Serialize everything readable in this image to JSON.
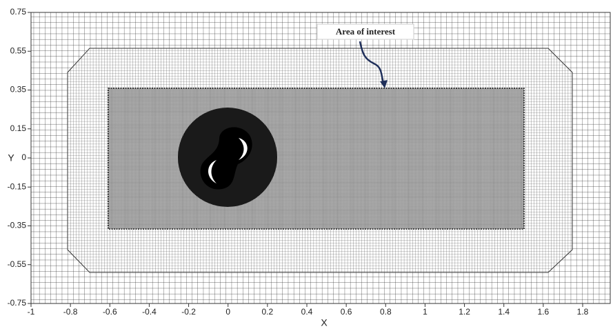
{
  "chart_data": {
    "type": "mesh",
    "x_label": "X",
    "y_label": "Y",
    "annotation": "Area of interest",
    "xlim": [
      -1,
      1.94
    ],
    "ylim": [
      -0.75,
      0.75
    ],
    "xticks": [
      -1,
      -0.8,
      -0.6,
      -0.4,
      -0.2,
      0,
      0.2,
      0.4,
      0.6,
      0.8,
      1,
      1.2,
      1.4,
      1.6,
      1.8
    ],
    "yticks": [
      0.75,
      0.55,
      0.35,
      0.15,
      0,
      -0.15,
      -0.35,
      -0.55,
      -0.75
    ]
  }
}
